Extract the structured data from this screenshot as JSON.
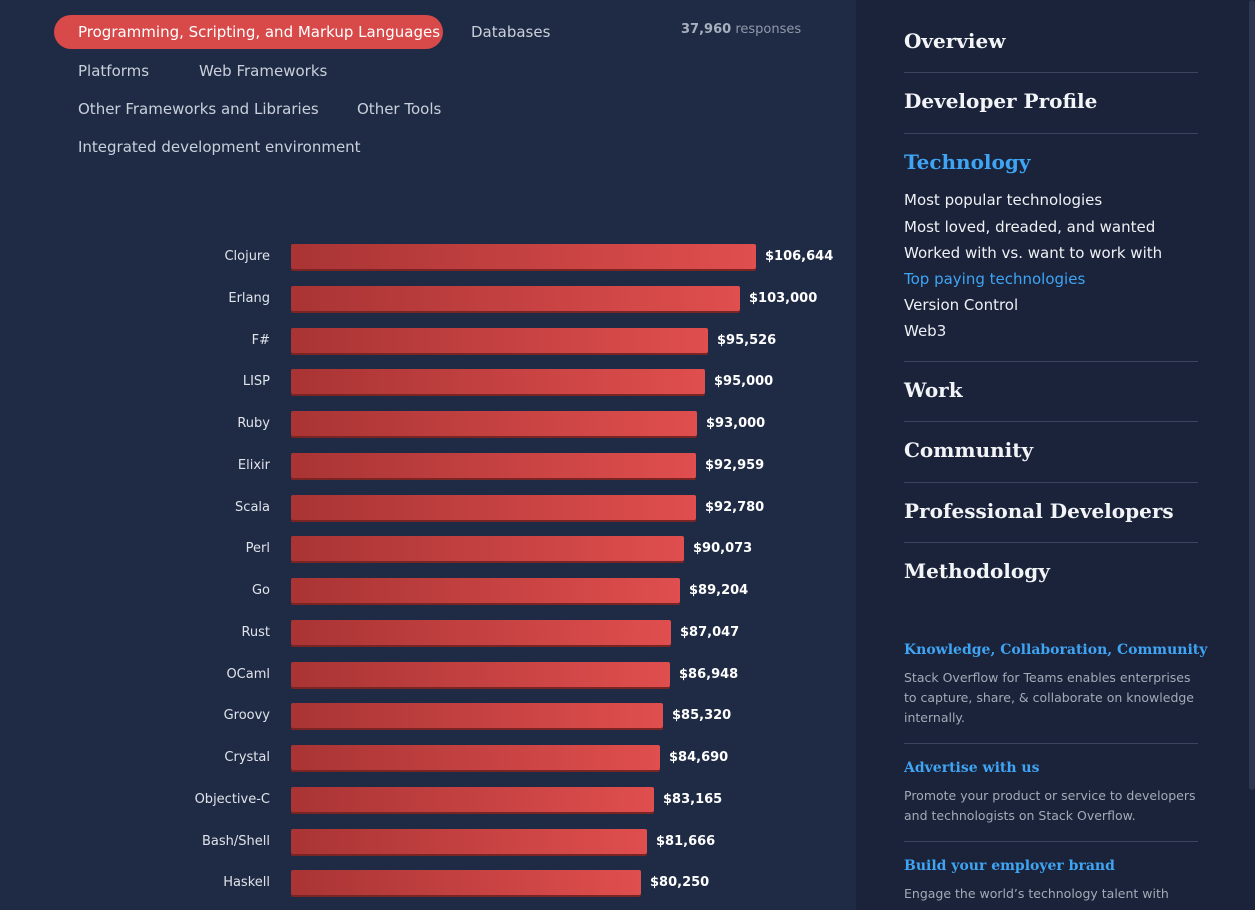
{
  "tabs": [
    {
      "label": "Programming, Scripting, and Markup Languages",
      "active": true
    },
    {
      "label": "Databases",
      "active": false
    },
    {
      "label": "Platforms",
      "active": false
    },
    {
      "label": "Web Frameworks",
      "active": false
    },
    {
      "label": "Other Frameworks and Libraries",
      "active": false
    },
    {
      "label": "Other Tools",
      "active": false
    },
    {
      "label": "Integrated development environment",
      "active": false
    }
  ],
  "responses": {
    "count": "37,960",
    "suffix": "responses"
  },
  "chart_data": {
    "type": "bar",
    "orientation": "horizontal",
    "categories": [
      "Clojure",
      "Erlang",
      "F#",
      "LISP",
      "Ruby",
      "Elixir",
      "Scala",
      "Perl",
      "Go",
      "Rust",
      "OCaml",
      "Groovy",
      "Crystal",
      "Objective-C",
      "Bash/Shell",
      "Haskell"
    ],
    "values": [
      106644,
      103000,
      95526,
      95000,
      93000,
      92959,
      92780,
      90073,
      89204,
      87047,
      86948,
      85320,
      84690,
      83165,
      81666,
      80250
    ],
    "value_labels": [
      "$106,644",
      "$103,000",
      "$95,526",
      "$95,000",
      "$93,000",
      "$92,959",
      "$92,780",
      "$90,073",
      "$89,204",
      "$87,047",
      "$86,948",
      "$85,320",
      "$84,690",
      "$83,165",
      "$81,666",
      "$80,250"
    ],
    "title": "",
    "xlabel": "",
    "ylabel": "",
    "bar_color": "#d84a4a",
    "grid": false
  },
  "sidebar": {
    "sections": [
      {
        "label": "Overview",
        "active": false
      },
      {
        "label": "Developer Profile",
        "active": false
      },
      {
        "label": "Technology",
        "active": true
      },
      {
        "label": "Work",
        "active": false
      },
      {
        "label": "Community",
        "active": false
      },
      {
        "label": "Professional Developers",
        "active": false
      },
      {
        "label": "Methodology",
        "active": false
      }
    ],
    "technology_items": [
      {
        "label": "Most popular technologies",
        "current": false
      },
      {
        "label": "Most loved, dreaded, and wanted",
        "current": false
      },
      {
        "label": "Worked with vs. want to work with",
        "current": false
      },
      {
        "label": "Top paying technologies",
        "current": true
      },
      {
        "label": "Version Control",
        "current": false
      },
      {
        "label": "Web3",
        "current": false
      }
    ],
    "promos": [
      {
        "title": "Knowledge, Collaboration, Community",
        "text": "Stack Overflow for Teams enables enterprises to capture, share, & collaborate on knowledge internally."
      },
      {
        "title": "Advertise with us",
        "text": "Promote your product or service to developers and technologists on Stack Overflow."
      },
      {
        "title": "Build your employer brand",
        "text": "Engage the world’s technology talent with your"
      }
    ]
  },
  "colors": {
    "background": "#1f2b45",
    "sidebar_background": "#1a2339",
    "accent": "#d84a4a",
    "link": "#3fa4f4"
  }
}
